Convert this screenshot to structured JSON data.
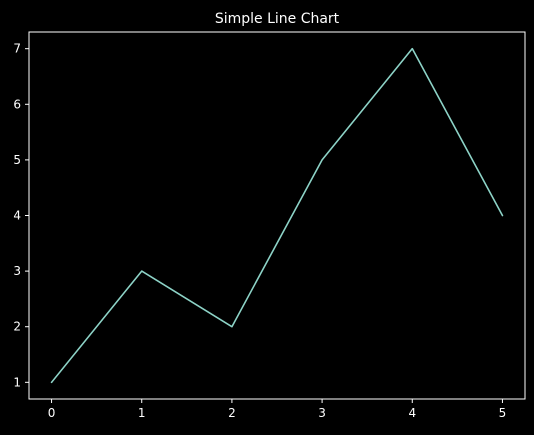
{
  "chart_data": {
    "type": "line",
    "title": "Simple Line Chart",
    "xlabel": "",
    "ylabel": "",
    "x": [
      0,
      1,
      2,
      3,
      4,
      5
    ],
    "series": [
      {
        "values": [
          1,
          3,
          2,
          5,
          7,
          4
        ]
      }
    ],
    "xlim": [
      -0.25,
      5.25
    ],
    "ylim": [
      0.7,
      7.3
    ],
    "xticks": [
      0,
      1,
      2,
      3,
      4,
      5
    ],
    "yticks": [
      1,
      2,
      3,
      4,
      5,
      6,
      7
    ],
    "grid": false,
    "legend": "none"
  },
  "colors": {
    "background": "#000000",
    "axes": "#ffffff",
    "text": "#ffffff",
    "series": "#8dd3c7"
  }
}
